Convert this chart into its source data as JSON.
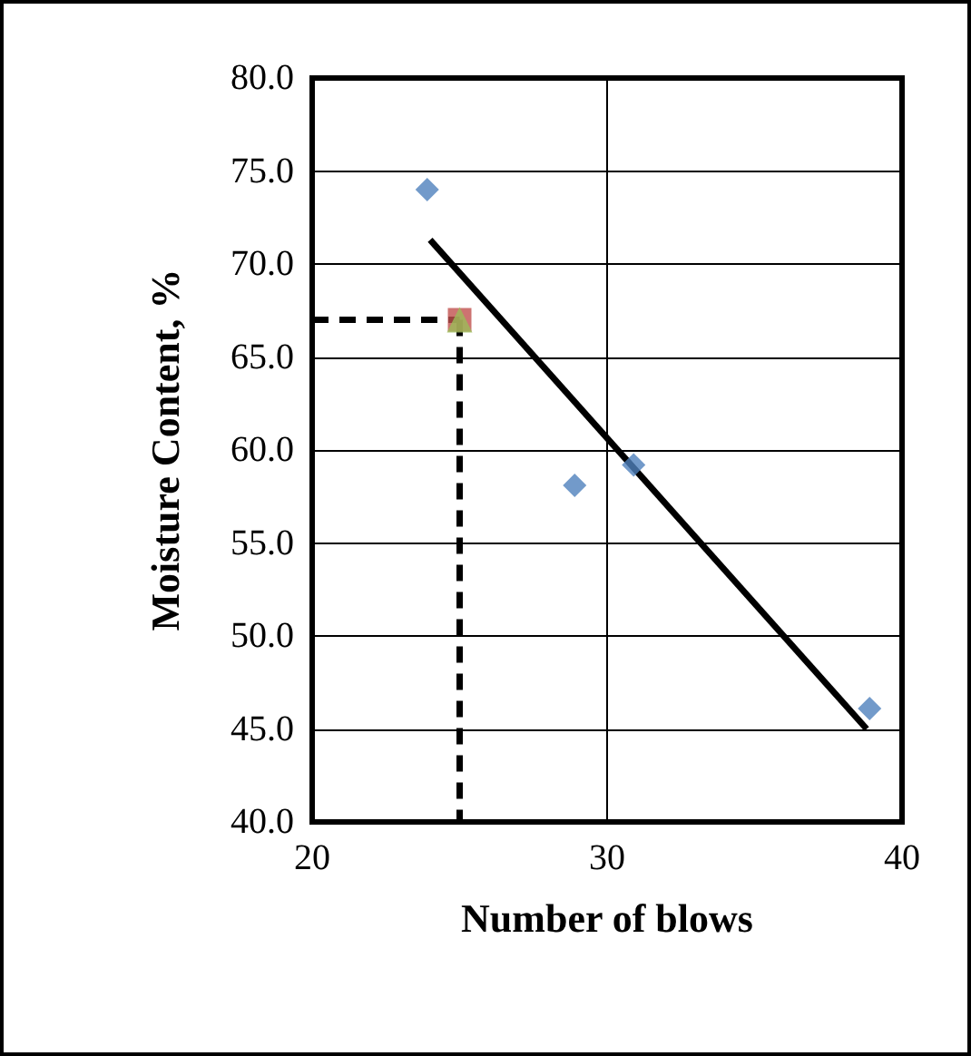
{
  "chart_data": {
    "type": "scatter",
    "xlabel": "Number of blows",
    "ylabel": "Moisture Content, %",
    "xlim": [
      20,
      40
    ],
    "xticks": [
      20,
      30,
      40
    ],
    "ylim": [
      40,
      80
    ],
    "yticks": [
      {
        "value": 40,
        "label": "40.0"
      },
      {
        "value": 45,
        "label": "45.0"
      },
      {
        "value": 50,
        "label": "50.0"
      },
      {
        "value": 55,
        "label": "55.0"
      },
      {
        "value": 60,
        "label": "60.0"
      },
      {
        "value": 65,
        "label": "65.0"
      },
      {
        "value": 70,
        "label": "70.0"
      },
      {
        "value": 75,
        "label": "75.0"
      },
      {
        "value": 80,
        "label": "80.0"
      }
    ],
    "grid": true,
    "series": [
      {
        "marker": "diamond",
        "color": "#4f81bd",
        "x": [
          23.9,
          28.9,
          30.9,
          38.9
        ],
        "values": [
          74.0,
          58.1,
          59.2,
          46.1
        ]
      },
      {
        "marker": "square",
        "color": "#c0504d",
        "x": [
          25
        ],
        "values": [
          67
        ]
      },
      {
        "marker": "triangle",
        "color": "#9bbb59",
        "x": [
          25
        ],
        "values": [
          67
        ]
      },
      {
        "type": "line",
        "marker": "none",
        "line_style": "solid",
        "color": "#000000",
        "x": [
          24,
          38.8
        ],
        "values": [
          71.3,
          45.0
        ]
      },
      {
        "type": "line",
        "marker": "none",
        "line_style": "dashed",
        "color": "#000000",
        "x": [
          20,
          25
        ],
        "values": [
          67,
          67
        ]
      },
      {
        "type": "line",
        "marker": "none",
        "line_style": "dashed",
        "color": "#000000",
        "x": [
          25,
          25
        ],
        "values": [
          67,
          40
        ]
      }
    ]
  }
}
